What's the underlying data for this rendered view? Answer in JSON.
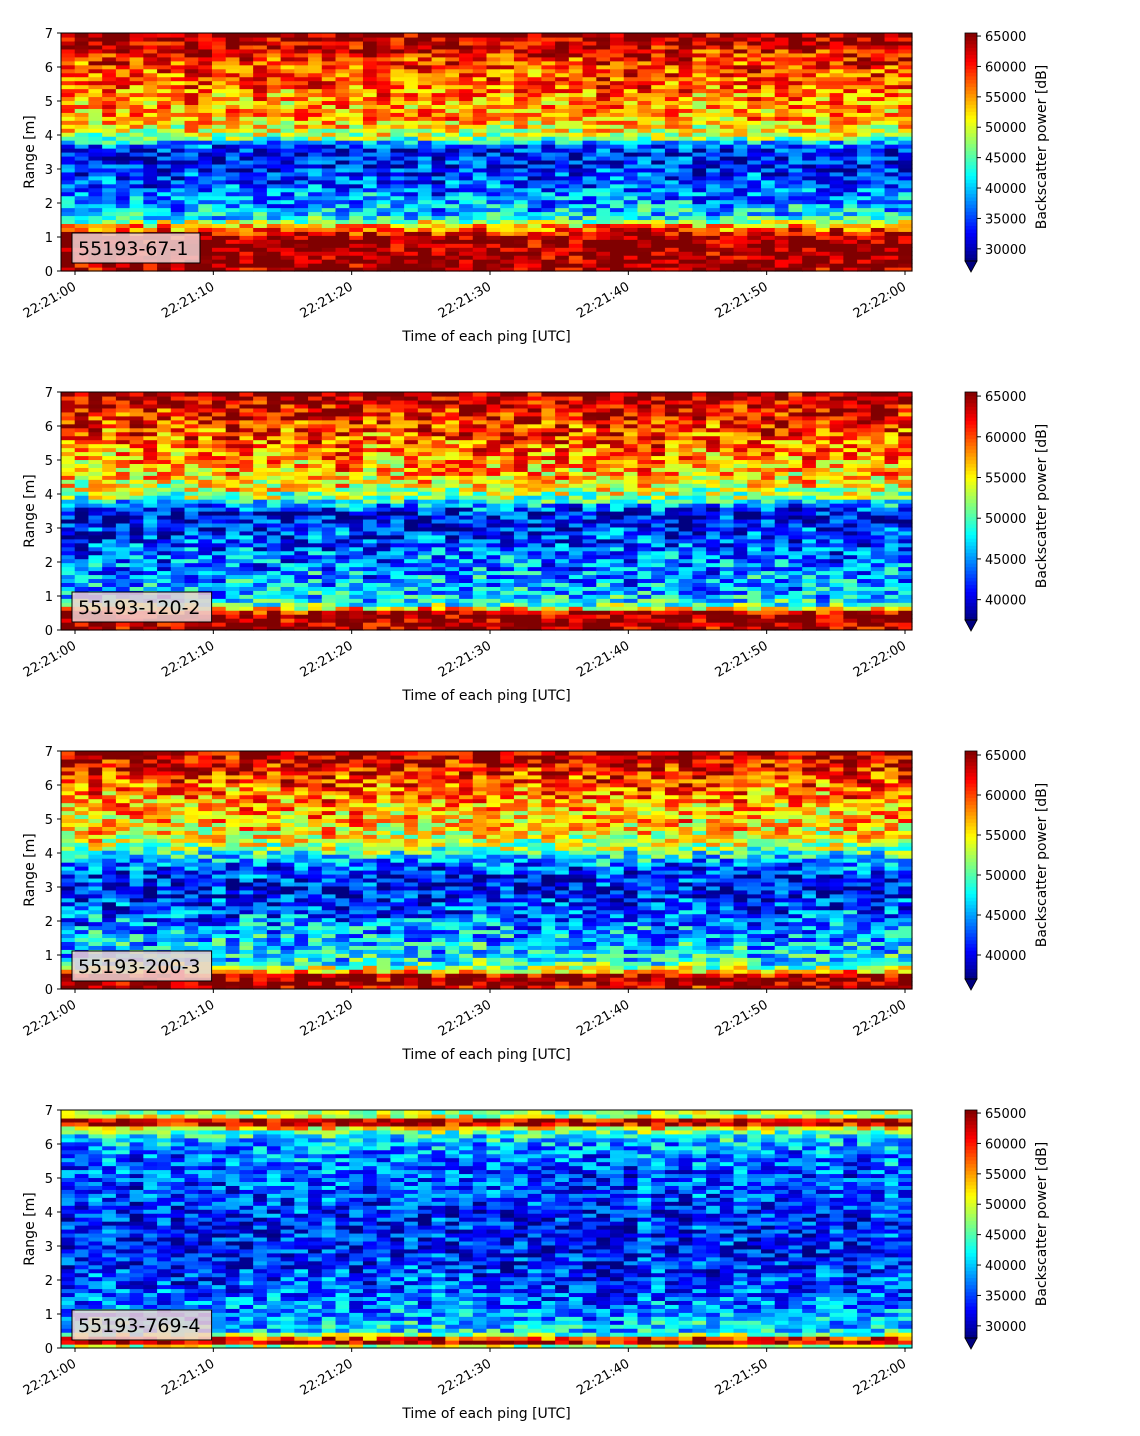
{
  "chart_data": [
    {
      "type": "heatmap",
      "label": "55193-67-1",
      "xlabel": "Time of each ping [UTC]",
      "ylabel": "Range [m]",
      "xticks": [
        "22:21:00",
        "22:21:10",
        "22:21:20",
        "22:21:30",
        "22:21:40",
        "22:21:50",
        "22:22:00"
      ],
      "ylim": [
        0,
        7
      ],
      "yticks": [
        0,
        1,
        2,
        3,
        4,
        5,
        6,
        7
      ],
      "colorbar": {
        "label": "Backscatter power [dB]",
        "min": 28000,
        "max": 65500,
        "ticks": [
          30000,
          35000,
          40000,
          45000,
          50000,
          55000,
          60000,
          65000
        ],
        "extend": "min"
      },
      "columns": 62,
      "profile": [
        [
          0.0,
          0.95
        ],
        [
          0.2,
          1.0
        ],
        [
          1.05,
          1.0
        ],
        [
          1.15,
          0.85
        ],
        [
          1.3,
          0.75
        ],
        [
          1.45,
          0.55
        ],
        [
          1.6,
          0.35
        ],
        [
          2.0,
          0.28
        ],
        [
          2.5,
          0.22
        ],
        [
          3.0,
          0.15
        ],
        [
          3.5,
          0.12
        ],
        [
          3.75,
          0.25
        ],
        [
          3.95,
          0.55
        ],
        [
          4.5,
          0.7
        ],
        [
          5.0,
          0.72
        ],
        [
          5.5,
          0.78
        ],
        [
          6.0,
          0.82
        ],
        [
          6.5,
          0.88
        ],
        [
          6.75,
          0.96
        ],
        [
          7.0,
          1.0
        ]
      ],
      "noise": 0.18
    },
    {
      "type": "heatmap",
      "label": "55193-120-2",
      "xlabel": "Time of each ping [UTC]",
      "ylabel": "Range [m]",
      "xticks": [
        "22:21:00",
        "22:21:10",
        "22:21:20",
        "22:21:30",
        "22:21:40",
        "22:21:50",
        "22:22:00"
      ],
      "ylim": [
        0,
        7
      ],
      "yticks": [
        0,
        1,
        2,
        3,
        4,
        5,
        6,
        7
      ],
      "colorbar": {
        "label": "Backscatter power [dB]",
        "min": 37500,
        "max": 65500,
        "ticks": [
          40000,
          45000,
          50000,
          55000,
          60000,
          65000
        ],
        "extend": "min"
      },
      "columns": 62,
      "profile": [
        [
          0.0,
          0.95
        ],
        [
          0.1,
          1.0
        ],
        [
          0.5,
          1.0
        ],
        [
          0.6,
          0.75
        ],
        [
          0.75,
          0.45
        ],
        [
          1.0,
          0.32
        ],
        [
          1.5,
          0.28
        ],
        [
          2.0,
          0.25
        ],
        [
          2.5,
          0.2
        ],
        [
          3.0,
          0.15
        ],
        [
          3.4,
          0.1
        ],
        [
          3.6,
          0.2
        ],
        [
          3.9,
          0.5
        ],
        [
          4.5,
          0.68
        ],
        [
          5.0,
          0.72
        ],
        [
          5.5,
          0.78
        ],
        [
          6.0,
          0.83
        ],
        [
          6.5,
          0.9
        ],
        [
          7.0,
          0.98
        ]
      ],
      "noise": 0.2
    },
    {
      "type": "heatmap",
      "label": "55193-200-3",
      "xlabel": "Time of each ping [UTC]",
      "ylabel": "Range [m]",
      "xticks": [
        "22:21:00",
        "22:21:10",
        "22:21:20",
        "22:21:30",
        "22:21:40",
        "22:21:50",
        "22:22:00"
      ],
      "ylim": [
        0,
        7
      ],
      "yticks": [
        0,
        1,
        2,
        3,
        4,
        5,
        6,
        7
      ],
      "colorbar": {
        "label": "Backscatter power [dB]",
        "min": 37000,
        "max": 65500,
        "ticks": [
          40000,
          45000,
          50000,
          55000,
          60000,
          65000
        ],
        "extend": "min"
      },
      "columns": 62,
      "profile": [
        [
          0.0,
          0.9
        ],
        [
          0.2,
          1.0
        ],
        [
          0.45,
          0.95
        ],
        [
          0.55,
          0.6
        ],
        [
          0.75,
          0.42
        ],
        [
          1.0,
          0.36
        ],
        [
          1.5,
          0.3
        ],
        [
          2.0,
          0.25
        ],
        [
          2.5,
          0.18
        ],
        [
          3.0,
          0.12
        ],
        [
          3.4,
          0.15
        ],
        [
          3.8,
          0.3
        ],
        [
          4.2,
          0.55
        ],
        [
          4.8,
          0.66
        ],
        [
          5.3,
          0.7
        ],
        [
          5.8,
          0.76
        ],
        [
          6.3,
          0.84
        ],
        [
          6.7,
          0.92
        ],
        [
          7.0,
          0.98
        ]
      ],
      "noise": 0.2
    },
    {
      "type": "heatmap",
      "label": "55193-769-4",
      "xlabel": "Time of each ping [UTC]",
      "ylabel": "Range [m]",
      "xticks": [
        "22:21:00",
        "22:21:10",
        "22:21:20",
        "22:21:30",
        "22:21:40",
        "22:21:50",
        "22:22:00"
      ],
      "ylim": [
        0,
        7
      ],
      "yticks": [
        0,
        1,
        2,
        3,
        4,
        5,
        6,
        7
      ],
      "colorbar": {
        "label": "Backscatter power [dB]",
        "min": 28000,
        "max": 65500,
        "ticks": [
          30000,
          35000,
          40000,
          45000,
          50000,
          55000,
          60000,
          65000
        ],
        "extend": "min"
      },
      "columns": 62,
      "profile": [
        [
          0.0,
          0.3
        ],
        [
          0.15,
          0.95
        ],
        [
          0.25,
          1.0
        ],
        [
          0.35,
          0.6
        ],
        [
          0.5,
          0.35
        ],
        [
          0.8,
          0.3
        ],
        [
          1.2,
          0.25
        ],
        [
          2.0,
          0.18
        ],
        [
          3.0,
          0.14
        ],
        [
          4.0,
          0.16
        ],
        [
          5.0,
          0.2
        ],
        [
          5.8,
          0.26
        ],
        [
          6.2,
          0.35
        ],
        [
          6.45,
          0.55
        ],
        [
          6.55,
          0.92
        ],
        [
          6.7,
          0.96
        ],
        [
          6.8,
          0.6
        ],
        [
          7.0,
          0.45
        ]
      ],
      "noise": 0.17
    }
  ]
}
